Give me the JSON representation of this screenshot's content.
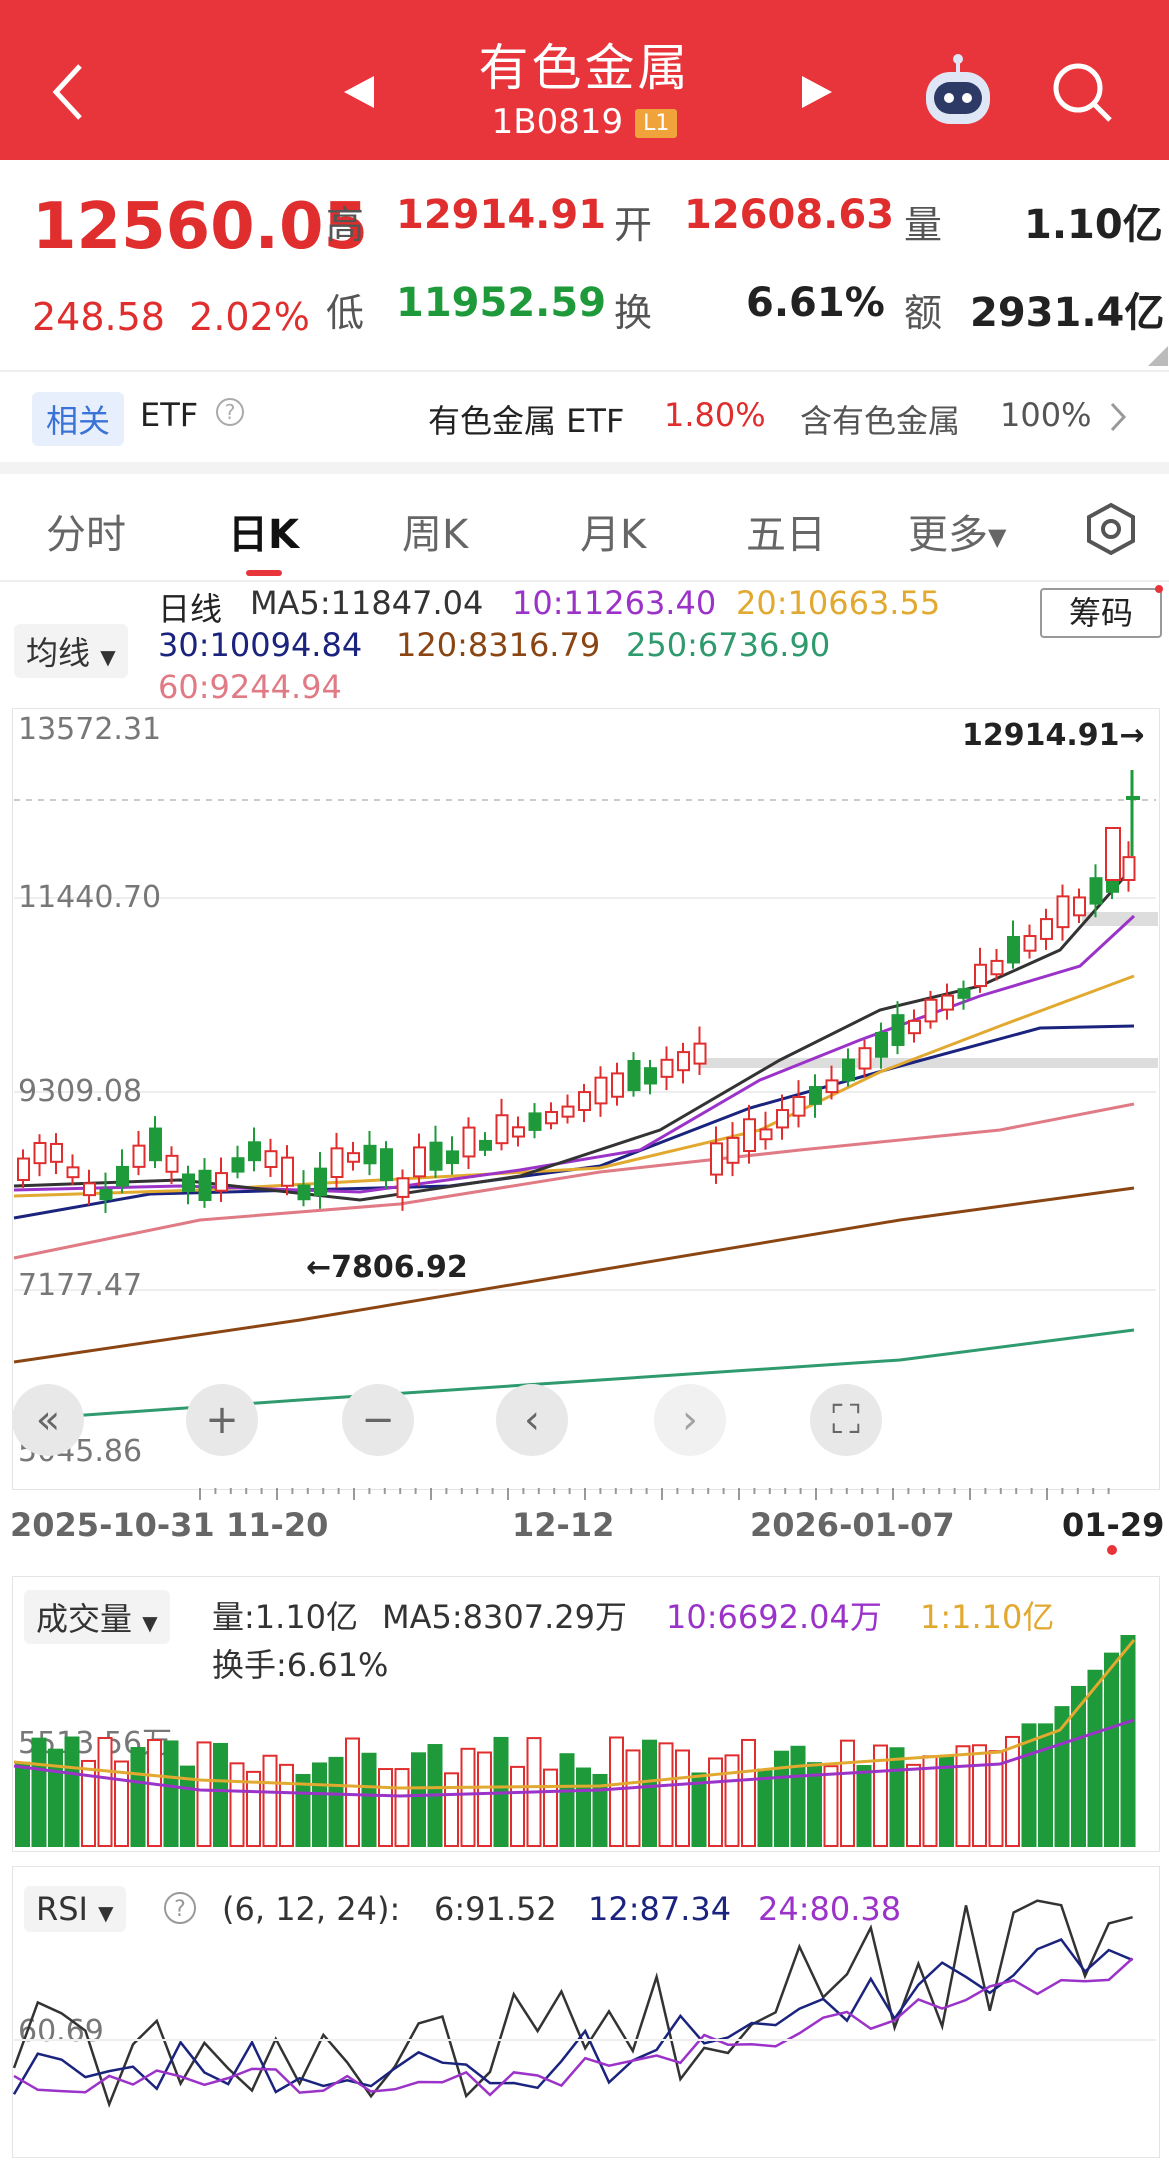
{
  "header": {
    "title": "有色金属",
    "code": "1B0819",
    "level": "L1"
  },
  "quote": {
    "price": "12560.05",
    "change": "248.58",
    "change_pct": "2.02%",
    "high_label": "高",
    "high": "12914.91",
    "open_label": "开",
    "open": "12608.63",
    "volume_label": "量",
    "volume": "1.10亿",
    "low_label": "低",
    "low": "11952.59",
    "turnover_label": "换",
    "turnover": "6.61%",
    "amount_label": "额",
    "amount": "2931.4亿"
  },
  "etf": {
    "tag": "相关",
    "etf_label": "ETF",
    "etf_name": "有色金属 ETF",
    "etf_pct": "1.80%",
    "contains_label": "含有色金属",
    "contains_pct": "100%"
  },
  "tabs": [
    "分时",
    "日K",
    "周K",
    "月K",
    "五日",
    "更多"
  ],
  "ma": {
    "dropdown": "均线",
    "period": "日线",
    "ma5": "MA5:11847.04",
    "ma10": "10:11263.40",
    "ma20": "20:10663.55",
    "ma30": "30:10094.84",
    "ma120": "120:8316.79",
    "ma250": "250:6736.90",
    "ma60": "60:9244.94",
    "chip_button": "筹码"
  },
  "kchart": {
    "y_labels": [
      "13572.31",
      "11440.70",
      "9309.08",
      "7177.47",
      "5045.86"
    ],
    "high_marker": "12914.91→",
    "low_marker": "←7806.92",
    "x_labels": [
      "2025-10-31",
      "11-20",
      "12-12",
      "2026-01-07",
      "01-29"
    ],
    "controls": [
      "«",
      "+",
      "−",
      "‹",
      "›",
      "⛶"
    ]
  },
  "volume": {
    "dropdown": "成交量",
    "vol": "量:1.10亿",
    "ma5": "MA5:8307.29万",
    "ma10": "10:6692.04万",
    "ma1": "1:1.10亿",
    "turnover": "换手:6.61%",
    "y_label": "5513.56万"
  },
  "rsi": {
    "dropdown": "RSI",
    "params": "(6, 12, 24):",
    "rsi6": "6:91.52",
    "rsi12": "12:87.34",
    "rsi24": "24:80.38",
    "y_label": "60.69"
  },
  "colors": {
    "up": "#e02d2d",
    "down": "#1e9a3a",
    "ma5": "#333333",
    "ma10": "#9b33c9",
    "ma20": "#e2a930",
    "ma30": "#1a237e",
    "ma60": "#e07a85",
    "ma120": "#8b4513",
    "ma250": "#2e9a6e"
  }
}
